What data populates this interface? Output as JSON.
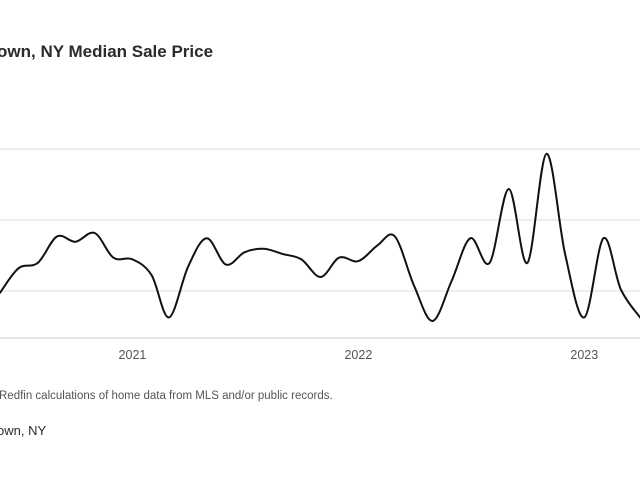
{
  "chart_data": {
    "type": "line",
    "title": "own, NY Median Sale Price",
    "xlabel": "",
    "ylabel": "",
    "x_ticks": [
      "2021",
      "2022",
      "2023"
    ],
    "xlim": [
      "2020-06",
      "2023-04"
    ],
    "grid": true,
    "series": [
      {
        "name": "own, NY",
        "color": "#111111",
        "points": [
          {
            "x": "2020-06-01",
            "y": 0.2
          },
          {
            "x": "2020-07-01",
            "y": 0.34
          },
          {
            "x": "2020-08-01",
            "y": 0.37
          },
          {
            "x": "2020-09-01",
            "y": 0.52
          },
          {
            "x": "2020-10-01",
            "y": 0.49
          },
          {
            "x": "2020-11-01",
            "y": 0.54
          },
          {
            "x": "2020-12-01",
            "y": 0.4
          },
          {
            "x": "2021-01-01",
            "y": 0.39
          },
          {
            "x": "2021-02-01",
            "y": 0.3
          },
          {
            "x": "2021-03-01",
            "y": 0.06
          },
          {
            "x": "2021-04-01",
            "y": 0.35
          },
          {
            "x": "2021-05-01",
            "y": 0.51
          },
          {
            "x": "2021-06-01",
            "y": 0.36
          },
          {
            "x": "2021-07-01",
            "y": 0.43
          },
          {
            "x": "2021-08-01",
            "y": 0.45
          },
          {
            "x": "2021-09-01",
            "y": 0.42
          },
          {
            "x": "2021-10-01",
            "y": 0.39
          },
          {
            "x": "2021-11-01",
            "y": 0.29
          },
          {
            "x": "2021-12-01",
            "y": 0.4
          },
          {
            "x": "2022-01-01",
            "y": 0.38
          },
          {
            "x": "2022-02-01",
            "y": 0.47
          },
          {
            "x": "2022-03-01",
            "y": 0.52
          },
          {
            "x": "2022-04-01",
            "y": 0.24
          },
          {
            "x": "2022-05-01",
            "y": 0.04
          },
          {
            "x": "2022-06-01",
            "y": 0.27
          },
          {
            "x": "2022-07-01",
            "y": 0.51
          },
          {
            "x": "2022-08-01",
            "y": 0.37
          },
          {
            "x": "2022-09-01",
            "y": 0.79
          },
          {
            "x": "2022-10-01",
            "y": 0.37
          },
          {
            "x": "2022-11-01",
            "y": 0.99
          },
          {
            "x": "2022-12-01",
            "y": 0.42
          },
          {
            "x": "2023-01-01",
            "y": 0.06
          },
          {
            "x": "2023-02-01",
            "y": 0.51
          },
          {
            "x": "2023-03-01",
            "y": 0.22
          },
          {
            "x": "2023-04-01",
            "y": 0.06
          }
        ]
      }
    ]
  },
  "source": "Redfin calculations of home data from MLS and/or public records.",
  "legend_label": "own, NY"
}
